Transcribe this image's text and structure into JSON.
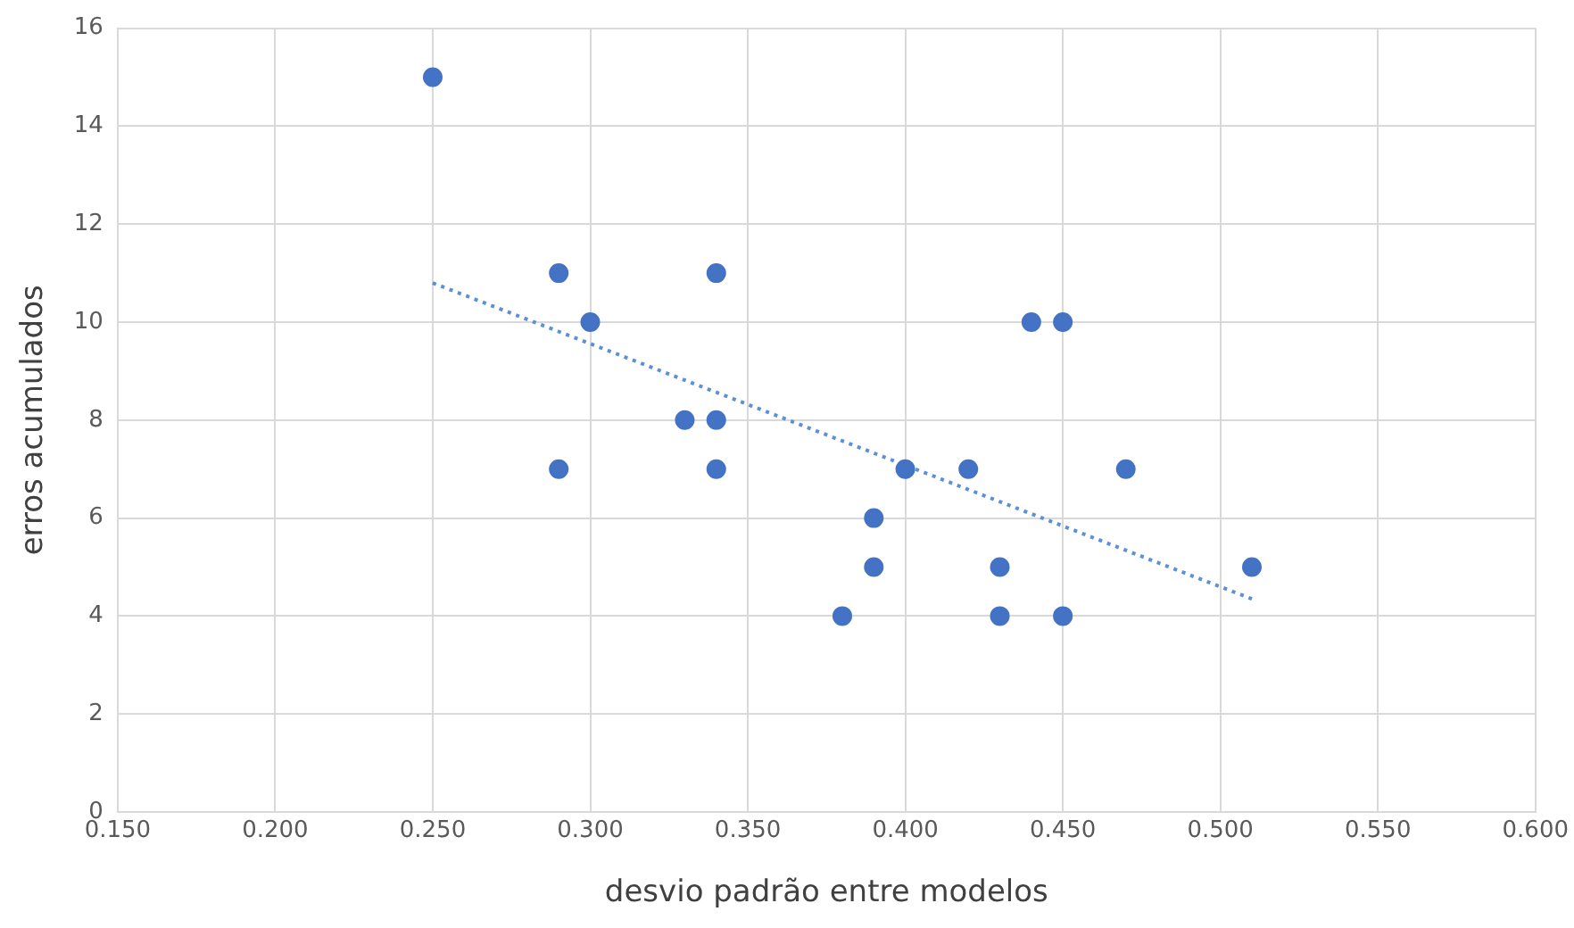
{
  "chart_data": {
    "type": "scatter",
    "xlabel": "desvio padrão entre modelos",
    "ylabel": "erros acumulados",
    "xlim": [
      0.15,
      0.6
    ],
    "xticks": [
      {
        "value": 0.15,
        "label": "0.150"
      },
      {
        "value": 0.2,
        "label": "0.200"
      },
      {
        "value": 0.25,
        "label": "0.250"
      },
      {
        "value": 0.3,
        "label": "0.300"
      },
      {
        "value": 0.35,
        "label": "0.350"
      },
      {
        "value": 0.4,
        "label": "0.400"
      },
      {
        "value": 0.45,
        "label": "0.450"
      },
      {
        "value": 0.5,
        "label": "0.500"
      },
      {
        "value": 0.55,
        "label": "0.550"
      },
      {
        "value": 0.6,
        "label": "0.600"
      }
    ],
    "ylim": [
      0,
      16
    ],
    "yticks": [
      0,
      2,
      4,
      6,
      8,
      10,
      12,
      14,
      16
    ],
    "grid": true,
    "legend": false,
    "marker": "circle",
    "series": [
      {
        "type": "scatter",
        "color": "#4472c4",
        "x": [
          0.25,
          0.29,
          0.3,
          0.29,
          0.33,
          0.34,
          0.34,
          0.34,
          0.38,
          0.39,
          0.39,
          0.4,
          0.42,
          0.43,
          0.43,
          0.44,
          0.45,
          0.45,
          0.47,
          0.51
        ],
        "values": [
          15,
          11,
          10,
          7,
          8,
          8,
          11,
          7,
          4,
          6,
          5,
          7,
          7,
          5,
          4,
          10,
          10,
          4,
          7,
          5
        ]
      },
      {
        "type": "line",
        "color": "#5b8fd8",
        "line_style": "dotted",
        "marker": "none",
        "x": [
          0.25,
          0.51
        ],
        "values": [
          10.8,
          4.35
        ]
      }
    ]
  }
}
